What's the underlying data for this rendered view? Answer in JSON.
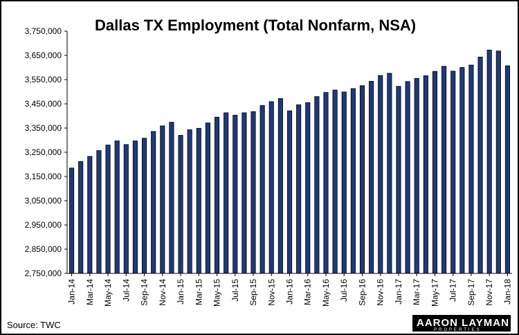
{
  "chart_data": {
    "type": "bar",
    "title": "Dallas TX Employment (Total Nonfarm, NSA)",
    "xlabel": "",
    "ylabel": "",
    "ylim": [
      2750000,
      3750000
    ],
    "yticks": [
      "2,750,000",
      "2,850,000",
      "2,950,000",
      "3,050,000",
      "3,150,000",
      "3,250,000",
      "3,350,000",
      "3,450,000",
      "3,550,000",
      "3,650,000",
      "3,750,000"
    ],
    "grid": false,
    "bar_color": "#1f3a7a",
    "categories": [
      "Jan-14",
      "Feb-14",
      "Mar-14",
      "Apr-14",
      "May-14",
      "Jun-14",
      "Jul-14",
      "Aug-14",
      "Sep-14",
      "Oct-14",
      "Nov-14",
      "Dec-14",
      "Jan-15",
      "Feb-15",
      "Mar-15",
      "Apr-15",
      "May-15",
      "Jun-15",
      "Jul-15",
      "Aug-15",
      "Sep-15",
      "Oct-15",
      "Nov-15",
      "Dec-15",
      "Jan-16",
      "Feb-16",
      "Mar-16",
      "Apr-16",
      "May-16",
      "Jun-16",
      "Jul-16",
      "Aug-16",
      "Sep-16",
      "Oct-16",
      "Nov-16",
      "Dec-16",
      "Jan-17",
      "Feb-17",
      "Mar-17",
      "Apr-17",
      "May-17",
      "Jun-17",
      "Jul-17",
      "Aug-17",
      "Sep-17",
      "Oct-17",
      "Nov-17",
      "Dec-17",
      "Jan-18"
    ],
    "tick_labels": [
      "Jan-14",
      "Mar-14",
      "May-14",
      "Jul-14",
      "Sep-14",
      "Nov-14",
      "Jan-15",
      "Mar-15",
      "May-15",
      "Jul-15",
      "Sep-15",
      "Nov-15",
      "Jan-16",
      "Mar-16",
      "May-16",
      "Jul-16",
      "Sep-16",
      "Nov-16",
      "Jan-17",
      "Mar-17",
      "May-17",
      "Jul-17",
      "Sep-17",
      "Nov-17",
      "Jan-18"
    ],
    "values": [
      3185000,
      3212000,
      3233000,
      3257000,
      3280000,
      3297000,
      3282000,
      3297000,
      3308000,
      3336000,
      3359000,
      3374000,
      3320000,
      3343000,
      3349000,
      3371000,
      3395000,
      3413000,
      3403000,
      3413000,
      3418000,
      3443000,
      3459000,
      3472000,
      3421000,
      3446000,
      3455000,
      3480000,
      3497000,
      3507000,
      3499000,
      3513000,
      3525000,
      3543000,
      3567000,
      3576000,
      3522000,
      3542000,
      3555000,
      3566000,
      3584000,
      3605000,
      3585000,
      3600000,
      3610000,
      3643000,
      3672000,
      3668000,
      3607000
    ]
  },
  "source": "Source: TWC",
  "logo": {
    "line1": "AARON LAYMAN",
    "line2": "PROPERTIES"
  }
}
